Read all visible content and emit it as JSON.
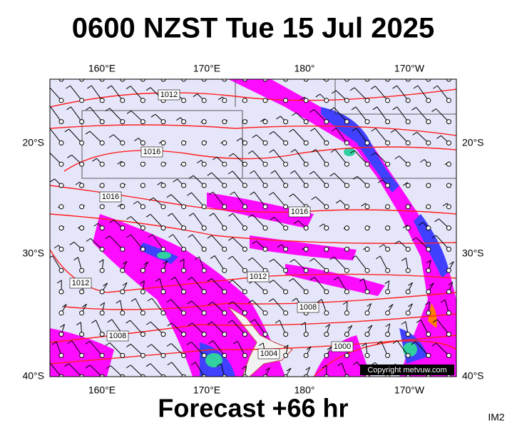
{
  "header": {
    "title": "0600 NZST Tue 15 Jul 2025"
  },
  "map": {
    "lon_labels": [
      "160°E",
      "170°E",
      "180°",
      "170°W"
    ],
    "lat_labels": [
      "20°S",
      "30°S",
      "40°S"
    ],
    "isobar_labels": [
      "1012",
      "1016",
      "1016",
      "1016",
      "1012",
      "1012",
      "1008",
      "1008",
      "1004",
      "1000"
    ],
    "copyright": "Copyright metvuw.com"
  },
  "footer": {
    "forecast": "Forecast +66 hr",
    "code": "IM2"
  }
}
